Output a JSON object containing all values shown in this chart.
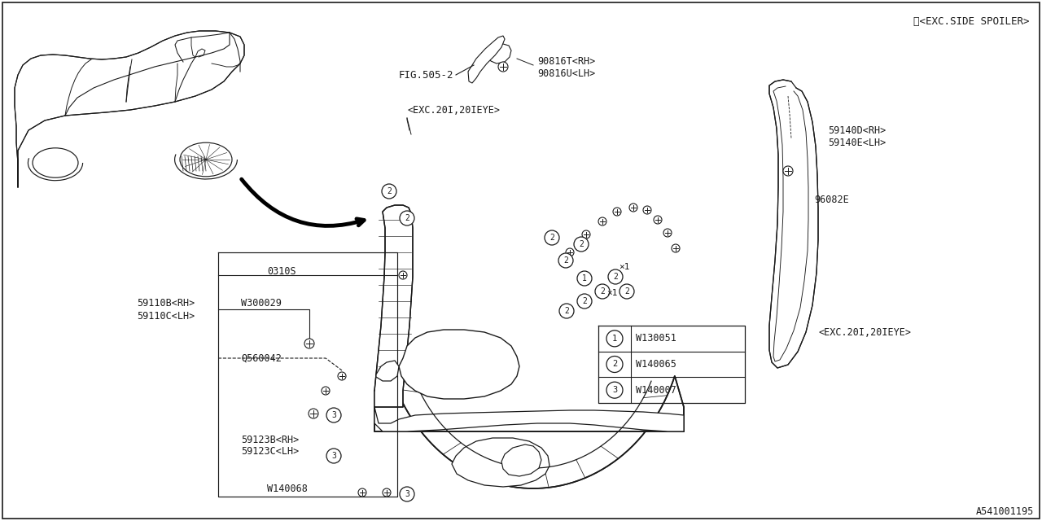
{
  "bg_color": "#ffffff",
  "line_color": "#1a1a1a",
  "fig_number": "A541001195",
  "exc_side_spoiler": "※<EXC.SIDE SPOILER>",
  "exc_20i_top": "<EXC.20I,20IEYE>",
  "exc_20i_bottom": "<EXC.20I,20IEYE>",
  "fig_505_2": "FIG.505-2",
  "label_90816T": "90816T<RH>",
  "label_90816U": "90816U<LH>",
  "label_59140D": "59140D<RH>",
  "label_59140E": "59140E<LH>",
  "label_96082E": "96082E",
  "label_59110B": "59110B<RH>",
  "label_59110C": "59110C<LH>",
  "label_Q560042": "Q560042",
  "label_W300029": "W300029",
  "label_0310S": "0310S",
  "label_59123B": "59123B<RH>",
  "label_59123C": "59123C<LH>",
  "label_W140068": "W140068",
  "legend": [
    {
      "num": "1",
      "code": "W130051"
    },
    {
      "num": "2",
      "code": "W140065"
    },
    {
      "num": "3",
      "code": "W140007"
    }
  ],
  "font_size": 8.5
}
